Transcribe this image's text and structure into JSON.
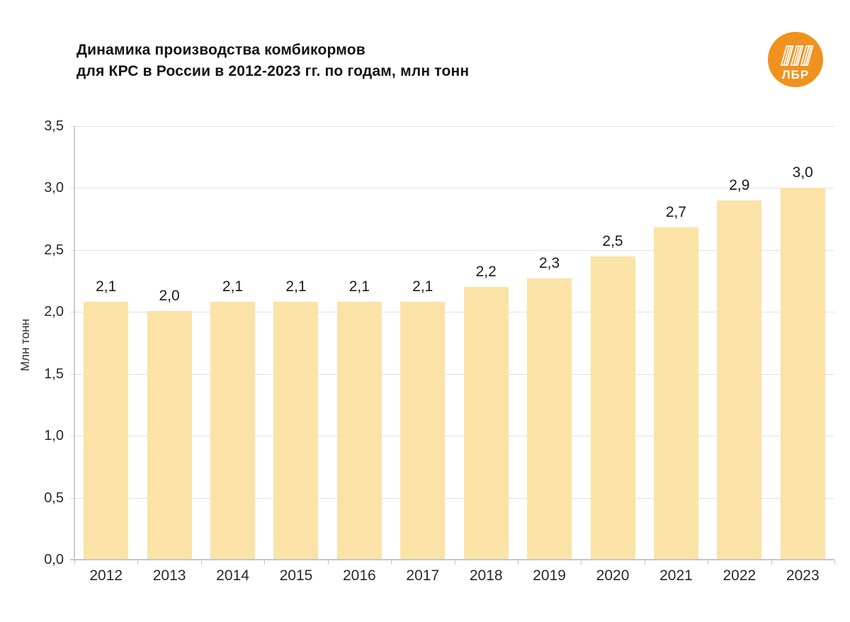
{
  "header": {
    "title_line1": "Динамика производства комбикормов",
    "title_line2": "для КРС в России в 2012-2023 гг. по годам, млн тонн",
    "logo_text": "ЛБР"
  },
  "colors": {
    "bar_fill": "#FBE2A7",
    "grid_line": "#E1E1E1",
    "axis_line": "#C7C7C7",
    "text_dark": "#1A1A1A",
    "axis_text": "#2A2A2A",
    "logo_orange": "#F0921E",
    "logo_white": "#FFFFFF"
  },
  "chart_data": {
    "type": "bar",
    "title": "Динамика производства комбикормов для КРС в России в 2012-2023 гг. по годам, млн тонн",
    "categories": [
      "2012",
      "2013",
      "2014",
      "2015",
      "2016",
      "2017",
      "2018",
      "2019",
      "2020",
      "2021",
      "2022",
      "2023"
    ],
    "values": [
      2.1,
      2.0,
      2.1,
      2.1,
      2.1,
      2.1,
      2.2,
      2.3,
      2.5,
      2.7,
      2.9,
      3.0
    ],
    "value_labels": [
      "2,1",
      "2,0",
      "2,1",
      "2,1",
      "2,1",
      "2,1",
      "2,2",
      "2,3",
      "2,5",
      "2,7",
      "2,9",
      "3,0"
    ],
    "values_precise": [
      2.08,
      2.01,
      2.08,
      2.08,
      2.08,
      2.08,
      2.2,
      2.27,
      2.45,
      2.68,
      2.9,
      3.0
    ],
    "xlabel": "",
    "ylabel": "Млн тонн",
    "ylim": [
      0,
      3.5
    ],
    "ytick_step": 0.5,
    "ytick_labels": [
      "0,0",
      "0,5",
      "1,0",
      "1,5",
      "2,0",
      "2,5",
      "3,0",
      "3,5"
    ],
    "grid": true,
    "legend": false,
    "bar_color": "#FBE2A7"
  }
}
